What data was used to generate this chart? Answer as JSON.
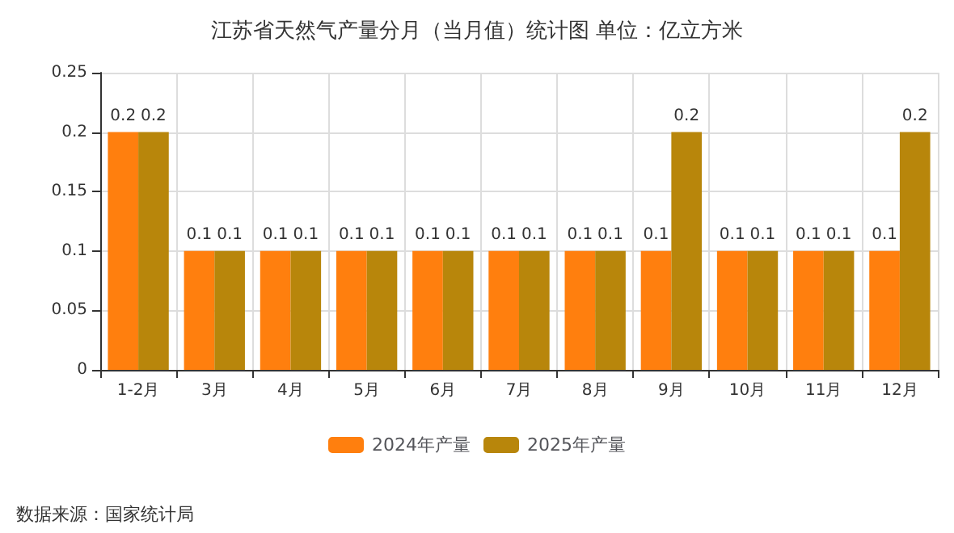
{
  "chart_data": {
    "type": "bar",
    "title": "江苏省天然气产量分月（当月值）统计图 单位：亿立方米",
    "categories": [
      "1-2月",
      "3月",
      "4月",
      "5月",
      "6月",
      "7月",
      "8月",
      "9月",
      "10月",
      "11月",
      "12月"
    ],
    "series": [
      {
        "name": "2024年产量",
        "color": "#ff7f0e",
        "values": [
          0.2,
          0.1,
          0.1,
          0.1,
          0.1,
          0.1,
          0.1,
          0.1,
          0.1,
          0.1,
          0.1
        ]
      },
      {
        "name": "2025年产量",
        "color": "#b8860b",
        "values": [
          0.2,
          0.1,
          0.1,
          0.1,
          0.1,
          0.1,
          0.1,
          0.2,
          0.1,
          0.1,
          0.2
        ]
      }
    ],
    "ylim": [
      0,
      0.25
    ],
    "yticks": [
      0,
      0.05,
      0.1,
      0.15,
      0.2,
      0.25
    ],
    "grid": true,
    "legend": "bottom",
    "data_labels": true,
    "annotations": [
      "数据来源：国家统计局"
    ]
  }
}
